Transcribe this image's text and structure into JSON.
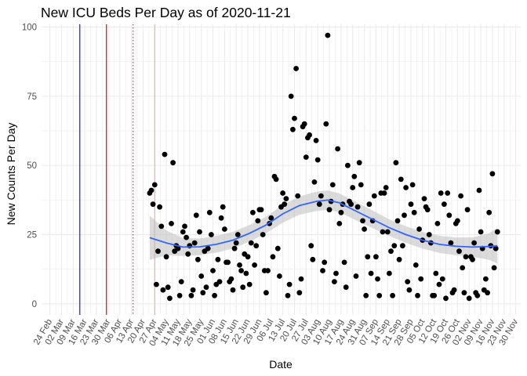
{
  "chart_data": {
    "type": "scatter",
    "title": "New ICU Beds Per Day as of 2020-11-21",
    "xlabel": "Date",
    "ylabel": "New Counts Per Day",
    "x_ticks": [
      "24 Feb",
      "02 Mar",
      "09 Mar",
      "16 Mar",
      "23 Mar",
      "30 Mar",
      "06 Apr",
      "13 Apr",
      "20 Apr",
      "27 Apr",
      "04 May",
      "11 May",
      "18 May",
      "25 May",
      "01 Jun",
      "08 Jun",
      "15 Jun",
      "22 Jun",
      "29 Jun",
      "06 Jul",
      "13 Jul",
      "20 Jul",
      "27 Jul",
      "03 Aug",
      "10 Aug",
      "17 Aug",
      "24 Aug",
      "31 Aug",
      "07 Sep",
      "14 Sep",
      "21 Sep",
      "28 Sep",
      "05 Oct",
      "12 Oct",
      "19 Oct",
      "26 Oct",
      "02 Nov",
      "09 Nov",
      "16 Nov",
      "23 Nov",
      "30 Nov"
    ],
    "y_ticks": [
      0,
      25,
      50,
      75,
      100
    ],
    "xlim": [
      "2020-02-19",
      "2020-12-03"
    ],
    "ylim": [
      -4,
      101
    ],
    "grid": true,
    "vlines": [
      {
        "date": "2020-03-13",
        "color": "#0000ff",
        "style": "solid"
      },
      {
        "date": "2020-03-29",
        "color": "#c00000",
        "style": "solid"
      },
      {
        "date": "2020-04-14",
        "color": "#a52a2a",
        "style": "dotted"
      },
      {
        "date": "2020-04-27",
        "color": "#f4a6a6",
        "style": "solid"
      }
    ],
    "colors": {
      "points": "#000000",
      "smooth": "#3366ff",
      "band": "#bdbdbd"
    },
    "points": [
      [
        "2020-04-24",
        40
      ],
      [
        "2020-04-25",
        41
      ],
      [
        "2020-04-26",
        36
      ],
      [
        "2020-04-27",
        43
      ],
      [
        "2020-04-28",
        7
      ],
      [
        "2020-04-29",
        19
      ],
      [
        "2020-04-30",
        35
      ],
      [
        "2020-05-01",
        28
      ],
      [
        "2020-05-02",
        5
      ],
      [
        "2020-05-03",
        54
      ],
      [
        "2020-05-04",
        17
      ],
      [
        "2020-05-05",
        6
      ],
      [
        "2020-05-06",
        2
      ],
      [
        "2020-05-07",
        29
      ],
      [
        "2020-05-08",
        51
      ],
      [
        "2020-05-09",
        19
      ],
      [
        "2020-05-10",
        21
      ],
      [
        "2020-05-11",
        20
      ],
      [
        "2020-05-12",
        3
      ],
      [
        "2020-05-13",
        8
      ],
      [
        "2020-05-14",
        26
      ],
      [
        "2020-05-15",
        28
      ],
      [
        "2020-05-16",
        24
      ],
      [
        "2020-05-17",
        18
      ],
      [
        "2020-05-18",
        21
      ],
      [
        "2020-05-19",
        3
      ],
      [
        "2020-05-20",
        5
      ],
      [
        "2020-05-21",
        22
      ],
      [
        "2020-05-22",
        32
      ],
      [
        "2020-05-23",
        16
      ],
      [
        "2020-05-24",
        26
      ],
      [
        "2020-05-25",
        10
      ],
      [
        "2020-05-26",
        4
      ],
      [
        "2020-05-27",
        19
      ],
      [
        "2020-05-28",
        6
      ],
      [
        "2020-05-29",
        20
      ],
      [
        "2020-05-30",
        33
      ],
      [
        "2020-05-31",
        25
      ],
      [
        "2020-06-01",
        12
      ],
      [
        "2020-06-02",
        3
      ],
      [
        "2020-06-03",
        7
      ],
      [
        "2020-06-04",
        16
      ],
      [
        "2020-06-05",
        8
      ],
      [
        "2020-06-06",
        31
      ],
      [
        "2020-06-07",
        35
      ],
      [
        "2020-06-08",
        27
      ],
      [
        "2020-06-09",
        15
      ],
      [
        "2020-06-10",
        15
      ],
      [
        "2020-06-11",
        8
      ],
      [
        "2020-06-12",
        9
      ],
      [
        "2020-06-13",
        5
      ],
      [
        "2020-06-14",
        20
      ],
      [
        "2020-06-15",
        22
      ],
      [
        "2020-06-16",
        25
      ],
      [
        "2020-06-17",
        14
      ],
      [
        "2020-06-18",
        12
      ],
      [
        "2020-06-19",
        6
      ],
      [
        "2020-06-20",
        18
      ],
      [
        "2020-06-21",
        11
      ],
      [
        "2020-06-22",
        17
      ],
      [
        "2020-06-23",
        7
      ],
      [
        "2020-06-24",
        22
      ],
      [
        "2020-06-25",
        33
      ],
      [
        "2020-06-26",
        14
      ],
      [
        "2020-06-27",
        21
      ],
      [
        "2020-06-28",
        30
      ],
      [
        "2020-06-29",
        34
      ],
      [
        "2020-06-30",
        34
      ],
      [
        "2020-07-01",
        25
      ],
      [
        "2020-07-02",
        12
      ],
      [
        "2020-07-03",
        4
      ],
      [
        "2020-07-04",
        12
      ],
      [
        "2020-07-05",
        29
      ],
      [
        "2020-07-06",
        31
      ],
      [
        "2020-07-07",
        17
      ],
      [
        "2020-07-08",
        46
      ],
      [
        "2020-07-09",
        45
      ],
      [
        "2020-07-10",
        20
      ],
      [
        "2020-07-11",
        10
      ],
      [
        "2020-07-12",
        35
      ],
      [
        "2020-07-13",
        40
      ],
      [
        "2020-07-14",
        36
      ],
      [
        "2020-07-15",
        38
      ],
      [
        "2020-07-16",
        3
      ],
      [
        "2020-07-17",
        7
      ],
      [
        "2020-07-18",
        75
      ],
      [
        "2020-07-19",
        63
      ],
      [
        "2020-07-20",
        67
      ],
      [
        "2020-07-21",
        85
      ],
      [
        "2020-07-22",
        39
      ],
      [
        "2020-07-23",
        4
      ],
      [
        "2020-07-24",
        9
      ],
      [
        "2020-07-25",
        64
      ],
      [
        "2020-07-26",
        65
      ],
      [
        "2020-07-27",
        53
      ],
      [
        "2020-07-28",
        60
      ],
      [
        "2020-07-29",
        61
      ],
      [
        "2020-07-30",
        21
      ],
      [
        "2020-07-31",
        16
      ],
      [
        "2020-08-01",
        44
      ],
      [
        "2020-08-02",
        59
      ],
      [
        "2020-08-03",
        52
      ],
      [
        "2020-08-04",
        36
      ],
      [
        "2020-08-05",
        39
      ],
      [
        "2020-08-06",
        12
      ],
      [
        "2020-08-07",
        15
      ],
      [
        "2020-08-08",
        65
      ],
      [
        "2020-08-09",
        97
      ],
      [
        "2020-08-10",
        34
      ],
      [
        "2020-08-11",
        37
      ],
      [
        "2020-08-12",
        43
      ],
      [
        "2020-08-13",
        8
      ],
      [
        "2020-08-14",
        11
      ],
      [
        "2020-08-15",
        56
      ],
      [
        "2020-08-16",
        29
      ],
      [
        "2020-08-17",
        33
      ],
      [
        "2020-08-18",
        36
      ],
      [
        "2020-08-19",
        15
      ],
      [
        "2020-08-20",
        6
      ],
      [
        "2020-08-21",
        50
      ],
      [
        "2020-08-22",
        37
      ],
      [
        "2020-08-23",
        36
      ],
      [
        "2020-08-24",
        42
      ],
      [
        "2020-08-25",
        46
      ],
      [
        "2020-08-26",
        10
      ],
      [
        "2020-08-27",
        35
      ],
      [
        "2020-08-28",
        51
      ],
      [
        "2020-08-29",
        43
      ],
      [
        "2020-08-30",
        30
      ],
      [
        "2020-08-31",
        27
      ],
      [
        "2020-09-01",
        3
      ],
      [
        "2020-09-02",
        17
      ],
      [
        "2020-09-03",
        36
      ],
      [
        "2020-09-04",
        11
      ],
      [
        "2020-09-05",
        30
      ],
      [
        "2020-09-06",
        39
      ],
      [
        "2020-09-07",
        17
      ],
      [
        "2020-09-08",
        9
      ],
      [
        "2020-09-09",
        3
      ],
      [
        "2020-09-10",
        40
      ],
      [
        "2020-09-11",
        26
      ],
      [
        "2020-09-12",
        40
      ],
      [
        "2020-09-13",
        42
      ],
      [
        "2020-09-14",
        26
      ],
      [
        "2020-09-15",
        11
      ],
      [
        "2020-09-16",
        19
      ],
      [
        "2020-09-17",
        3
      ],
      [
        "2020-09-18",
        21
      ],
      [
        "2020-09-19",
        51
      ],
      [
        "2020-09-20",
        30
      ],
      [
        "2020-09-21",
        16
      ],
      [
        "2020-09-22",
        45
      ],
      [
        "2020-09-23",
        21
      ],
      [
        "2020-09-24",
        32
      ],
      [
        "2020-09-25",
        42
      ],
      [
        "2020-09-26",
        8
      ],
      [
        "2020-09-27",
        5
      ],
      [
        "2020-09-28",
        36
      ],
      [
        "2020-09-29",
        43
      ],
      [
        "2020-09-30",
        33
      ],
      [
        "2020-10-01",
        14
      ],
      [
        "2020-10-02",
        3
      ],
      [
        "2020-10-03",
        27
      ],
      [
        "2020-10-04",
        9
      ],
      [
        "2020-10-05",
        23
      ],
      [
        "2020-10-06",
        38
      ],
      [
        "2020-10-07",
        35
      ],
      [
        "2020-10-08",
        34
      ],
      [
        "2020-10-09",
        25
      ],
      [
        "2020-10-10",
        22
      ],
      [
        "2020-10-11",
        3
      ],
      [
        "2020-10-12",
        3
      ],
      [
        "2020-10-13",
        11
      ],
      [
        "2020-10-14",
        29
      ],
      [
        "2020-10-15",
        7
      ],
      [
        "2020-10-16",
        40
      ],
      [
        "2020-10-17",
        9
      ],
      [
        "2020-10-18",
        36
      ],
      [
        "2020-10-19",
        2
      ],
      [
        "2020-10-20",
        40
      ],
      [
        "2020-10-21",
        32
      ],
      [
        "2020-10-22",
        22
      ],
      [
        "2020-10-23",
        4
      ],
      [
        "2020-10-24",
        5
      ],
      [
        "2020-10-25",
        29
      ],
      [
        "2020-10-26",
        30
      ],
      [
        "2020-10-27",
        19
      ],
      [
        "2020-10-28",
        39
      ],
      [
        "2020-10-29",
        13
      ],
      [
        "2020-10-30",
        4
      ],
      [
        "2020-10-31",
        17
      ],
      [
        "2020-11-01",
        34
      ],
      [
        "2020-11-02",
        2
      ],
      [
        "2020-11-03",
        17
      ],
      [
        "2020-11-04",
        16
      ],
      [
        "2020-11-05",
        22
      ],
      [
        "2020-11-06",
        4
      ],
      [
        "2020-11-07",
        3
      ],
      [
        "2020-11-08",
        41
      ],
      [
        "2020-11-09",
        26
      ],
      [
        "2020-11-10",
        20
      ],
      [
        "2020-11-11",
        5
      ],
      [
        "2020-11-12",
        9
      ],
      [
        "2020-11-13",
        4
      ],
      [
        "2020-11-14",
        33
      ],
      [
        "2020-11-15",
        21
      ],
      [
        "2020-11-16",
        47
      ],
      [
        "2020-11-17",
        13
      ],
      [
        "2020-11-18",
        20
      ],
      [
        "2020-11-19",
        26
      ]
    ],
    "smooth": [
      [
        "2020-04-24",
        23.9
      ],
      [
        "2020-05-04",
        22.0
      ],
      [
        "2020-05-14",
        20.5
      ],
      [
        "2020-05-24",
        20.6
      ],
      [
        "2020-06-03",
        21.5
      ],
      [
        "2020-06-13",
        23.0
      ],
      [
        "2020-06-23",
        25.5
      ],
      [
        "2020-07-03",
        28.5
      ],
      [
        "2020-07-13",
        32.5
      ],
      [
        "2020-07-23",
        35.5
      ],
      [
        "2020-08-02",
        37.0
      ],
      [
        "2020-08-09",
        37.5
      ],
      [
        "2020-08-16",
        36.5
      ],
      [
        "2020-08-26",
        33.5
      ],
      [
        "2020-09-05",
        30.5
      ],
      [
        "2020-09-15",
        27.5
      ],
      [
        "2020-09-25",
        25.0
      ],
      [
        "2020-10-05",
        23.0
      ],
      [
        "2020-10-15",
        21.5
      ],
      [
        "2020-10-25",
        20.8
      ],
      [
        "2020-11-04",
        20.5
      ],
      [
        "2020-11-14",
        20.7
      ],
      [
        "2020-11-19",
        21.0
      ]
    ],
    "band_halfwidth": [
      [
        "2020-04-24",
        8.0
      ],
      [
        "2020-05-04",
        4.5
      ],
      [
        "2020-05-14",
        3.2
      ],
      [
        "2020-05-24",
        3.0
      ],
      [
        "2020-06-03",
        3.0
      ],
      [
        "2020-06-13",
        3.0
      ],
      [
        "2020-06-23",
        3.0
      ],
      [
        "2020-07-03",
        3.0
      ],
      [
        "2020-07-13",
        3.2
      ],
      [
        "2020-07-23",
        3.3
      ],
      [
        "2020-08-02",
        3.5
      ],
      [
        "2020-08-09",
        3.5
      ],
      [
        "2020-08-16",
        3.4
      ],
      [
        "2020-08-26",
        3.3
      ],
      [
        "2020-09-05",
        3.2
      ],
      [
        "2020-09-15",
        3.0
      ],
      [
        "2020-09-25",
        3.0
      ],
      [
        "2020-10-05",
        3.0
      ],
      [
        "2020-10-15",
        3.1
      ],
      [
        "2020-10-25",
        3.2
      ],
      [
        "2020-11-04",
        3.5
      ],
      [
        "2020-11-14",
        4.8
      ],
      [
        "2020-11-19",
        6.5
      ]
    ]
  }
}
